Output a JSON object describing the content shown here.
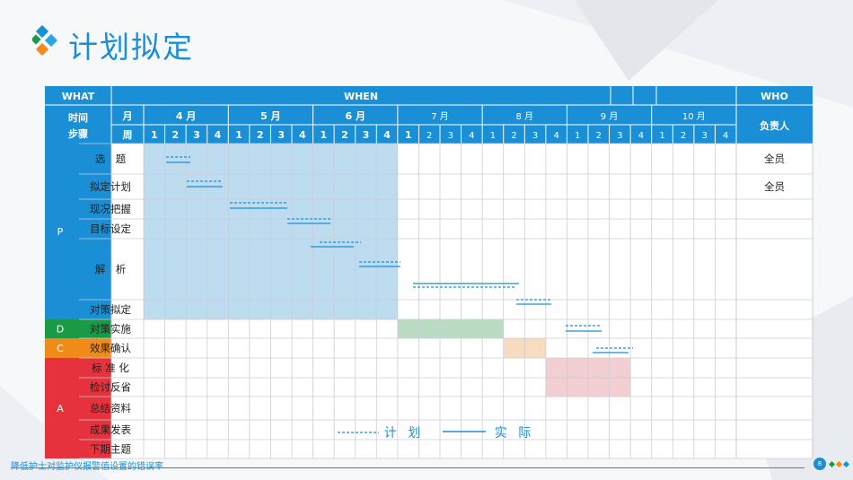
{
  "title": "计划拟定",
  "header": {
    "what": "WHAT",
    "when": "WHEN",
    "who": "WHO",
    "shijian_buzhou": [
      "时间",
      "步骤"
    ],
    "month_label": "月",
    "week_label": "周",
    "owner": "负责人"
  },
  "months": [
    {
      "label": "4 月",
      "bold": true
    },
    {
      "label": "5 月",
      "bold": true
    },
    {
      "label": "6 月",
      "bold": true
    },
    {
      "label": "7 月",
      "bold": false
    },
    {
      "label": "8 月",
      "bold": false
    },
    {
      "label": "9 月",
      "bold": false
    },
    {
      "label": "10 月",
      "bold": false
    }
  ],
  "weeks": [
    "1",
    "2",
    "3",
    "4",
    "1",
    "2",
    "3",
    "4",
    "1",
    "2",
    "3",
    "4",
    "1",
    "2",
    "3",
    "4",
    "1",
    "2",
    "3",
    "4",
    "1",
    "2",
    "3",
    "4",
    "1",
    "2",
    "3",
    "4"
  ],
  "phases": [
    {
      "label": "P",
      "color": "#1a8fd6"
    },
    {
      "label": "D",
      "color": "#1a9a47"
    },
    {
      "label": "C",
      "color": "#f08a18"
    },
    {
      "label": "A",
      "color": "#e6323c"
    }
  ],
  "steps": [
    {
      "label": "选　题",
      "owner": "全员"
    },
    {
      "label": "拟定计划",
      "owner": "全员"
    },
    {
      "label": "现况把握",
      "owner": ""
    },
    {
      "label": "目标设定",
      "owner": ""
    },
    {
      "label": "解　析",
      "owner": ""
    },
    {
      "label": "对策拟定",
      "owner": ""
    },
    {
      "label": "对策实施",
      "owner": ""
    },
    {
      "label": "效果确认",
      "owner": ""
    },
    {
      "label": "标 准 化",
      "owner": ""
    },
    {
      "label": "检讨反省",
      "owner": ""
    },
    {
      "label": "总结资料",
      "owner": ""
    },
    {
      "label": "成果发表",
      "owner": ""
    },
    {
      "label": "下期主题",
      "owner": ""
    }
  ],
  "legend": {
    "plan": "计 划",
    "actual": "实 际"
  },
  "colors": {
    "accent": "#1a8fd6",
    "plan_shade": "#bddcef",
    "do_shade": "#b9dcc2",
    "check_shade": "#f8dcc0",
    "act_shade": "#f3cfd3"
  },
  "footer": {
    "text": "降低护士对监护仪报警值设置的错误率",
    "page": "8"
  }
}
